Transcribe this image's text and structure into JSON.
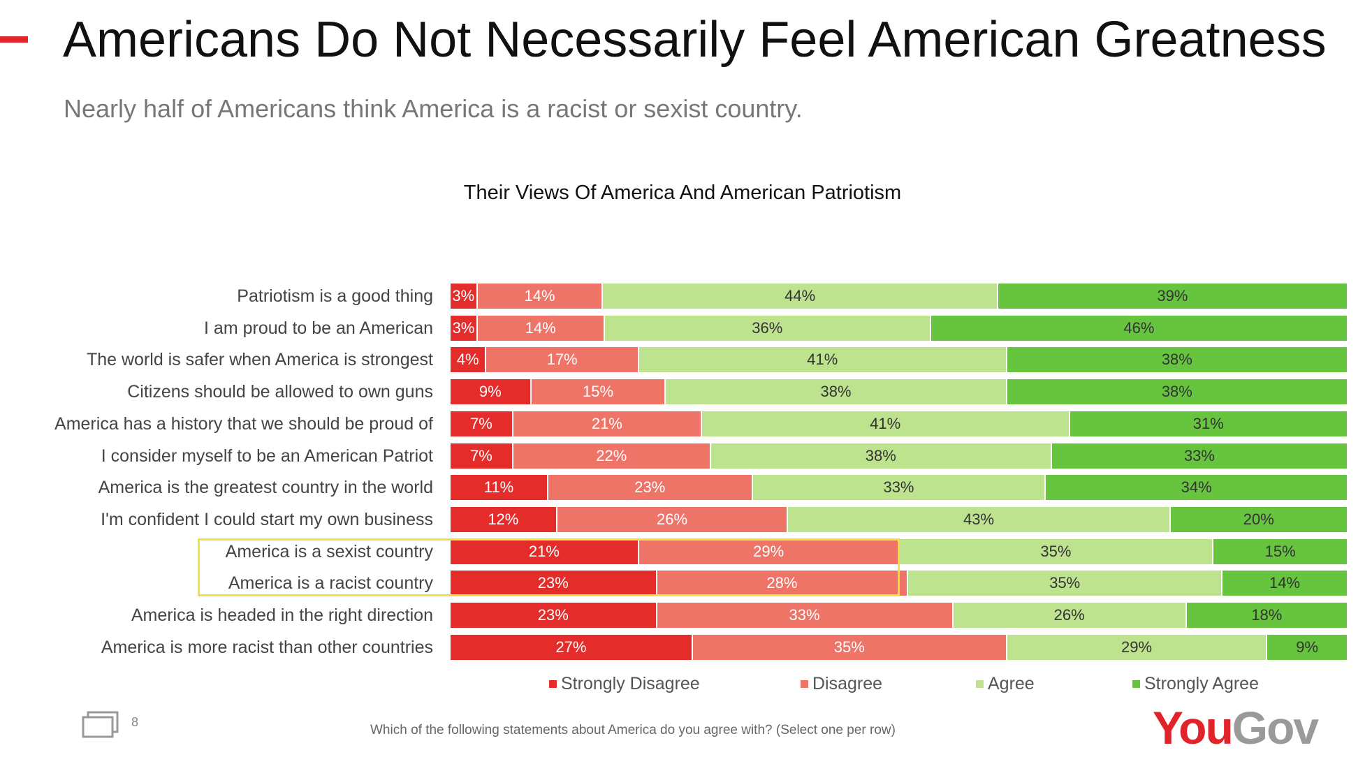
{
  "header": {
    "title": "Americans Do Not Necessarily Feel American Greatness",
    "subtitle": "Nearly half of Americans think America is a racist or sexist country."
  },
  "chart_data": {
    "type": "bar",
    "orientation": "horizontal",
    "stacked": true,
    "title": "Their Views Of America And American Patriotism",
    "categories": [
      "Patriotism is a good thing",
      "I am proud to be an American",
      "The world is safer when America is strongest",
      "Citizens should be allowed to own guns",
      "America has a history that we should be proud of",
      "I consider myself to be an American Patriot",
      "America is the greatest country in the world",
      "I'm confident I could start my own business",
      "America is a sexist country",
      "America is a racist country",
      "America is headed in the right direction",
      "America is more racist than other countries"
    ],
    "series": [
      {
        "name": "Strongly Disagree",
        "color": "#e42d2b",
        "values": [
          3,
          3,
          4,
          9,
          7,
          7,
          11,
          12,
          21,
          23,
          23,
          27
        ]
      },
      {
        "name": "Disagree",
        "color": "#ef7468",
        "values": [
          14,
          14,
          17,
          15,
          21,
          22,
          23,
          26,
          29,
          28,
          33,
          35
        ]
      },
      {
        "name": "Agree",
        "color": "#bde38f",
        "values": [
          44,
          36,
          41,
          38,
          41,
          38,
          33,
          43,
          35,
          35,
          26,
          29
        ]
      },
      {
        "name": "Strongly Agree",
        "color": "#66c43f",
        "values": [
          39,
          46,
          38,
          38,
          31,
          33,
          34,
          20,
          15,
          14,
          18,
          9
        ]
      }
    ],
    "data_labels": [
      [
        "3%",
        "14%",
        "44%",
        "39%"
      ],
      [
        "3%",
        "14%",
        "36%",
        "46%"
      ],
      [
        "4%",
        "17%",
        "41%",
        "38%"
      ],
      [
        "9%",
        "15%",
        "38%",
        "38%"
      ],
      [
        "7%",
        "21%",
        "41%",
        "31%"
      ],
      [
        "7%",
        "22%",
        "38%",
        "33%"
      ],
      [
        "11%",
        "23%",
        "33%",
        "34%"
      ],
      [
        "12%",
        "26%",
        "43%",
        "20%"
      ],
      [
        "21%",
        "29%",
        "35%",
        "15%"
      ],
      [
        "23%",
        "28%",
        "35%",
        "14%"
      ],
      [
        "23%",
        "33%",
        "26%",
        "18%"
      ],
      [
        "27%",
        "35%",
        "29%",
        "9%"
      ]
    ],
    "highlighted_rows": [
      "America is a sexist country",
      "America is a racist country"
    ],
    "highlight_color": "#f5e13c",
    "legend_position": "bottom"
  },
  "footer": {
    "page_number": "8",
    "question": "Which of the following statements about America do you agree with?  (Select one per row)",
    "brand_you": "You",
    "brand_gov": "Gov"
  }
}
